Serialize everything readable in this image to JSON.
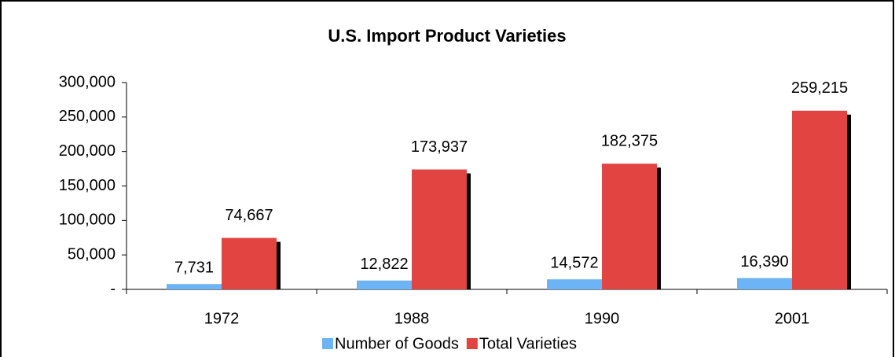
{
  "chart_data": {
    "type": "bar",
    "title": "U.S. Import Product Varieties",
    "categories": [
      "1972",
      "1988",
      "1990",
      "2001"
    ],
    "series": [
      {
        "name": "Number of Goods",
        "color": "#6cb4f5",
        "values": [
          7731,
          12822,
          14572,
          16390
        ],
        "value_labels": [
          "7,731",
          "12,822",
          "14,572",
          "16,390"
        ]
      },
      {
        "name": "Total Varieties",
        "color": "#e24442",
        "values": [
          74667,
          173937,
          182375,
          259215
        ],
        "value_labels": [
          "74,667",
          "173,937",
          "182,375",
          "259,215"
        ]
      }
    ],
    "ylim": [
      0,
      300000
    ],
    "yticks": [
      {
        "value": 0,
        "label": "-"
      },
      {
        "value": 50000,
        "label": "50,000"
      },
      {
        "value": 100000,
        "label": "100,000"
      },
      {
        "value": 150000,
        "label": "150,000"
      },
      {
        "value": 200000,
        "label": "200,000"
      },
      {
        "value": 250000,
        "label": "250,000"
      },
      {
        "value": 300000,
        "label": "300,000"
      }
    ],
    "legend": "bottom",
    "grid": false
  }
}
